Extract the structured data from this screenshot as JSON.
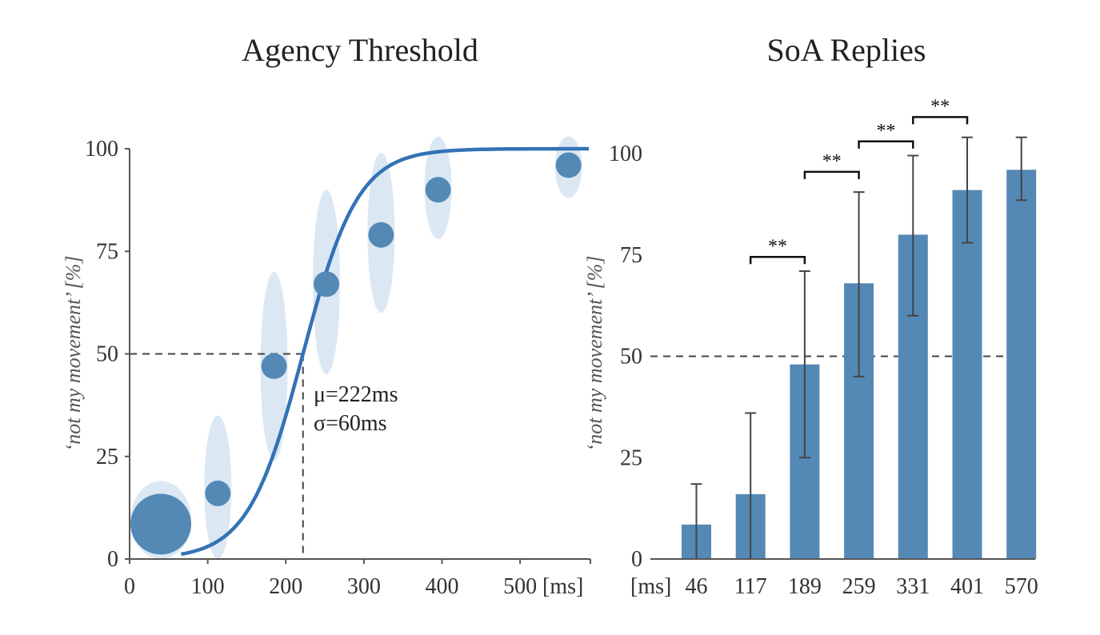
{
  "chart_data": [
    {
      "type": "scatter",
      "title": "Agency Threshold",
      "ylabel": "‘not my movement’ [%]",
      "x_unit_label": "[ms]",
      "xlim": [
        0,
        590
      ],
      "ylim": [
        0,
        100
      ],
      "x_ticks": [
        "0",
        "100",
        "200",
        "300",
        "400",
        "500"
      ],
      "y_ticks": [
        "0",
        "25",
        "50",
        "75",
        "100"
      ],
      "points": [
        {
          "x": 40,
          "y": 8.5,
          "size": "large"
        },
        {
          "x": 113,
          "y": 16
        },
        {
          "x": 185,
          "y": 47
        },
        {
          "x": 252,
          "y": 67
        },
        {
          "x": 322,
          "y": 79
        },
        {
          "x": 395,
          "y": 90
        },
        {
          "x": 562,
          "y": 96
        }
      ],
      "spread": [
        {
          "x": 40,
          "y_low": 0,
          "y_high": 19
        },
        {
          "x": 113,
          "y_low": 0,
          "y_high": 35
        },
        {
          "x": 185,
          "y_low": 24,
          "y_high": 70
        },
        {
          "x": 252,
          "y_low": 45,
          "y_high": 90
        },
        {
          "x": 322,
          "y_low": 60,
          "y_high": 99
        },
        {
          "x": 395,
          "y_low": 78,
          "y_high": 103
        },
        {
          "x": 562,
          "y_low": 88,
          "y_high": 103
        }
      ],
      "fit": {
        "mu": 222,
        "sigma": 60,
        "label_mu": "μ=222ms",
        "label_sigma": "σ=60ms"
      },
      "threshold_y": 50,
      "colors": {
        "points": "#5489b6",
        "fit": "#3472b6",
        "spread": "#dbe8f4"
      }
    },
    {
      "type": "bar",
      "title": "SoA Replies",
      "ylabel": "‘not my movement’ [%]",
      "x_unit_label": "[ms]",
      "categories": [
        "46",
        "117",
        "189",
        "259",
        "331",
        "401",
        "570"
      ],
      "values": [
        8.5,
        16,
        48,
        68,
        80,
        91,
        96
      ],
      "error_low": [
        0,
        0,
        25,
        45,
        60,
        78,
        88.5
      ],
      "error_high": [
        18.5,
        36,
        71,
        90.5,
        99.5,
        104,
        104
      ],
      "ylim": [
        0,
        100
      ],
      "y_ticks": [
        "0",
        "25",
        "50",
        "75",
        "100"
      ],
      "threshold_y": 50,
      "significance": [
        {
          "from": 1,
          "to": 2,
          "level": 74.5,
          "label": "**"
        },
        {
          "from": 2,
          "to": 3,
          "level": 95.5,
          "label": "**"
        },
        {
          "from": 3,
          "to": 4,
          "level": 103,
          "label": "**"
        },
        {
          "from": 4,
          "to": 5,
          "level": 109,
          "label": "**"
        }
      ],
      "colors": {
        "bars": "#5489b6",
        "error": "#444444"
      }
    }
  ]
}
